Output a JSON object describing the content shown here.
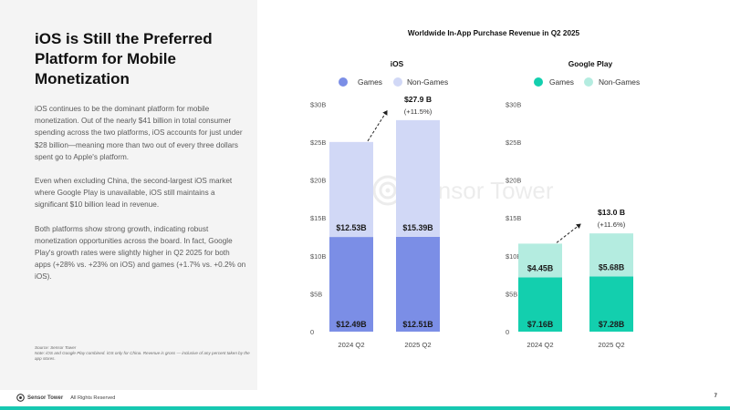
{
  "slide": {
    "title": "iOS is Still the Preferred Platform for Mobile Monetization",
    "paragraphs": [
      "iOS continues to be the dominant platform for mobile monetization. Out of the nearly $41 billion in total consumer spending across the two platforms, iOS accounts for just under $28 billion—meaning more than two out of every three dollars spent go to Apple's platform.",
      "Even when excluding China, the second-largest iOS market where Google Play is unavailable, iOS still maintains a significant $10 billion lead in revenue.",
      "Both platforms show strong growth, indicating robust monetization opportunities across the board. In fact, Google Play's growth rates were slightly higher in Q2 2025 for both apps (+28% vs. +23% on iOS) and games (+1.7% vs. +0.2% on iOS)."
    ],
    "source": "Source: Sensor Tower",
    "note": "Note: iOS and Google Play combined. iOS only for China. Revenue is gross — inclusive of any percent taken by the app stores.",
    "footer_brand": "Sensor Tower",
    "footer_rights": "All Rights Reserved",
    "page_number": "7",
    "watermark": "Sensor Tower"
  },
  "colors": {
    "ios_games": "#7b8ee6",
    "ios_nongames": "#d1d8f6",
    "gp_games": "#13cfae",
    "gp_nongames": "#b4ece0",
    "accent_bar": "#17c8b1",
    "left_panel_bg": "#f4f4f4"
  },
  "chart_data": {
    "title": "Worldwide In-App Purchase Revenue in Q2 2025",
    "charts": [
      {
        "type": "bar",
        "stacked": true,
        "title": "iOS",
        "categories": [
          "2024 Q2",
          "2025 Q2"
        ],
        "series": [
          {
            "name": "Games",
            "values": [
              12.49,
              12.51
            ],
            "labels": [
              "$12.49B",
              "$12.51B"
            ],
            "color": "#7b8ee6"
          },
          {
            "name": "Non-Games",
            "values": [
              12.53,
              15.39
            ],
            "labels": [
              "$12.53B",
              "$15.39B"
            ],
            "color": "#d1d8f6"
          }
        ],
        "total_label": "$27.9 B",
        "growth_label": "(+11.5%)",
        "ylim": [
          0,
          30
        ],
        "yticks": [
          0,
          5,
          10,
          15,
          20,
          25,
          30
        ],
        "ytick_labels": [
          "0",
          "$5B",
          "$10B",
          "$15B",
          "$20B",
          "$25B",
          "$30B"
        ],
        "legend_position": "top"
      },
      {
        "type": "bar",
        "stacked": true,
        "title": "Google Play",
        "categories": [
          "2024 Q2",
          "2025 Q2"
        ],
        "series": [
          {
            "name": "Games",
            "values": [
              7.16,
              7.28
            ],
            "labels": [
              "$7.16B",
              "$7.28B"
            ],
            "color": "#13cfae"
          },
          {
            "name": "Non-Games",
            "values": [
              4.45,
              5.68
            ],
            "labels": [
              "$4.45B",
              "$5.68B"
            ],
            "color": "#b4ece0"
          }
        ],
        "total_label": "$13.0 B",
        "growth_label": "(+11.6%)",
        "ylim": [
          0,
          30
        ],
        "yticks": [
          0,
          5,
          10,
          15,
          20,
          25,
          30
        ],
        "ytick_labels": [
          "0",
          "$5B",
          "$10B",
          "$15B",
          "$20B",
          "$25B",
          "$30B"
        ],
        "legend_position": "top"
      }
    ]
  }
}
